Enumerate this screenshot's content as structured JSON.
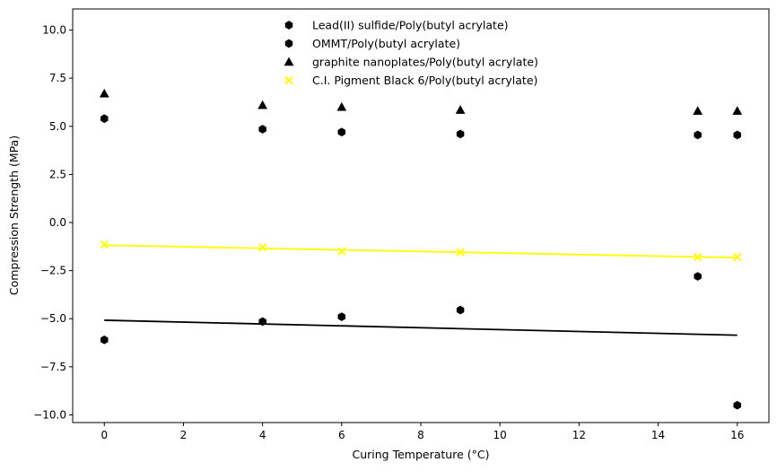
{
  "chart_data": {
    "type": "scatter",
    "xlabel": "Curing Temperature (°C)",
    "ylabel": "Compression Strength (MPa)",
    "xlim": [
      -0.8,
      16.8
    ],
    "ylim": [
      -10.4,
      11.1
    ],
    "xticks": [
      0,
      2,
      4,
      6,
      8,
      10,
      12,
      14,
      16
    ],
    "yticks": [
      -10.0,
      -7.5,
      -5.0,
      -2.5,
      0.0,
      2.5,
      5.0,
      7.5,
      10.0
    ],
    "xtick_labels": [
      "0",
      "2",
      "4",
      "6",
      "8",
      "10",
      "12",
      "14",
      "16"
    ],
    "ytick_labels": [
      "−10.0",
      "−7.5",
      "−5.0",
      "−2.5",
      "0.0",
      "2.5",
      "5.0",
      "7.5",
      "10.0"
    ],
    "grid": false,
    "legend_position": "top-center",
    "series": [
      {
        "name": "Lead(II) sulfide/Poly(butyl acrylate)",
        "marker": "hexagon",
        "color": "#000000",
        "x": [
          0,
          4,
          6,
          9,
          15,
          16
        ],
        "y": [
          -6.1,
          -5.15,
          -4.9,
          -4.55,
          -2.8,
          -9.5
        ],
        "trend": {
          "x": [
            0,
            16
          ],
          "y": [
            -5.08,
            -5.86
          ],
          "color": "#000000"
        }
      },
      {
        "name": "OMMT/Poly(butyl acrylate)",
        "marker": "hexagon",
        "color": "#000000",
        "x": [
          0,
          4,
          6,
          9,
          15,
          16
        ],
        "y": [
          5.4,
          4.85,
          4.7,
          4.6,
          4.55,
          4.55
        ]
      },
      {
        "name": "graphite nanoplates/Poly(butyl acrylate)",
        "marker": "triangle",
        "color": "#000000",
        "x": [
          0,
          4,
          6,
          9,
          15,
          16
        ],
        "y": [
          6.7,
          6.1,
          6.0,
          5.85,
          5.8,
          5.8
        ]
      },
      {
        "name": "C.I. Pigment Black 6/Poly(butyl acrylate)",
        "marker": "x",
        "color": "#ffff00",
        "x": [
          0,
          4,
          6,
          9,
          15,
          16
        ],
        "y": [
          -1.15,
          -1.3,
          -1.5,
          -1.55,
          -1.8,
          -1.8
        ],
        "trend": {
          "x": [
            0,
            16
          ],
          "y": [
            -1.18,
            -1.83
          ],
          "color": "#ffff00"
        }
      }
    ]
  }
}
